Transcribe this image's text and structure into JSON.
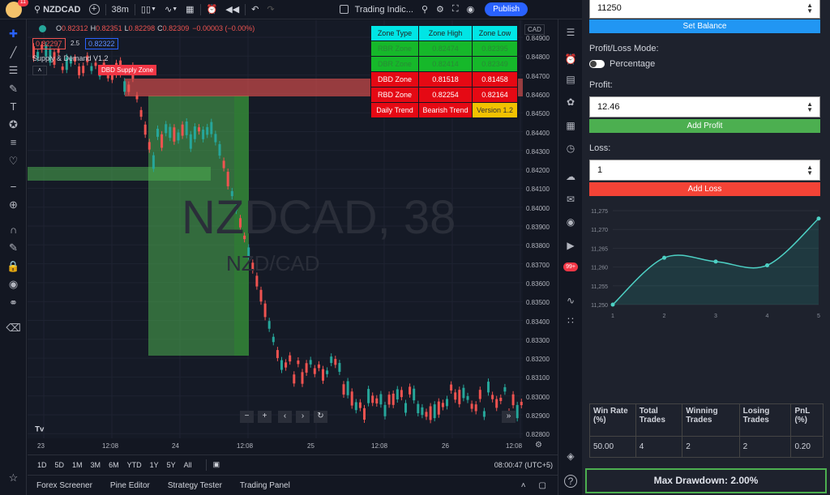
{
  "topbar": {
    "avatar_badge": "11",
    "symbol": "NZDCAD",
    "interval": "38m",
    "indicators_label": "Trading Indic...",
    "publish_label": "Publish"
  },
  "legend": {
    "ohlc": [
      {
        "k": "O",
        "v": "0.82312"
      },
      {
        "k": "H",
        "v": "0.82351"
      },
      {
        "k": "L",
        "v": "0.82298"
      },
      {
        "k": "C",
        "v": "0.82309"
      }
    ],
    "change": "−0.00003 (−0.00%)",
    "sell_price": "0.82297",
    "spread": "2.5",
    "buy_price": "0.82322",
    "indicator_name": "Supply & Demand V1.2",
    "zone_label": "DBD Supply Zone",
    "watermark_symbol": "NZDCAD, 38",
    "watermark_name": "NZD/CAD"
  },
  "zone_table": {
    "headers": [
      "Zone Type",
      "Zone High",
      "Zone Low"
    ],
    "rows": [
      {
        "type": "RBR Zone",
        "high": "0.82474",
        "low": "0.82395"
      },
      {
        "type": "DBR Zone",
        "high": "0.82414",
        "low": "0.82349"
      },
      {
        "type": "DBD Zone",
        "high": "0.81518",
        "low": "0.81458"
      },
      {
        "type": "RBD Zone",
        "high": "0.82254",
        "low": "0.82164"
      }
    ],
    "footer": [
      "Daily Trend",
      "Bearish Trend",
      "Version 1.2"
    ]
  },
  "price_axis": {
    "currency": "CAD",
    "ticks": [
      "0.84900",
      "0.84800",
      "0.84700",
      "0.84600",
      "0.84500",
      "0.84400",
      "0.84300",
      "0.84200",
      "0.84100",
      "0.84000",
      "0.83900",
      "0.83800",
      "0.83700",
      "0.83600",
      "0.83500",
      "0.83400",
      "0.83300",
      "0.83200",
      "0.83100",
      "0.83000",
      "0.82900",
      "0.82800"
    ]
  },
  "time_axis": [
    "23",
    "12:08",
    "24",
    "12:08",
    "25",
    "12:08",
    "26",
    "12:08"
  ],
  "ranges": [
    "1D",
    "5D",
    "1M",
    "3M",
    "6M",
    "YTD",
    "1Y",
    "5Y",
    "All"
  ],
  "clock": "08:00:47 (UTC+5)",
  "footer_tabs": [
    "Forex Screener",
    "Pine Editor",
    "Strategy Tester",
    "Trading Panel"
  ],
  "right_badge": "99+",
  "panel": {
    "balance_value": "11250",
    "set_balance_label": "Set Balance",
    "mode_label": "Profit/Loss Mode:",
    "percentage_label": "Percentage",
    "profit_label": "Profit:",
    "profit_value": "12.46",
    "add_profit_label": "Add Profit",
    "loss_label": "Loss:",
    "loss_value": "1",
    "add_loss_label": "Add Loss",
    "stats_headers": [
      "Win Rate (%)",
      "Total Trades",
      "Winning Trades",
      "Losing Trades",
      "PnL (%)"
    ],
    "stats_values": [
      "50.00",
      "4",
      "2",
      "2",
      "0.20"
    ],
    "max_drawdown": "Max Drawdown: 2.00%"
  },
  "colors": {
    "bull": "#26a69a",
    "bear": "#ef5350",
    "accent": "#2962ff",
    "green_button": "#4caf50",
    "red_button": "#f44336",
    "blue_button": "#2196f3"
  },
  "chart_data": {
    "type": "line",
    "x": [
      1,
      2,
      3,
      4,
      5
    ],
    "y": [
      11250,
      11262.46,
      11261.46,
      11260.46,
      11272.9
    ],
    "ylim": [
      11250,
      11275
    ],
    "y_ticks": [
      "11,275",
      "11,270",
      "11,265",
      "11,260",
      "11,255",
      "11,250"
    ],
    "x_ticks": [
      "1",
      "2",
      "3",
      "4",
      "5"
    ]
  }
}
